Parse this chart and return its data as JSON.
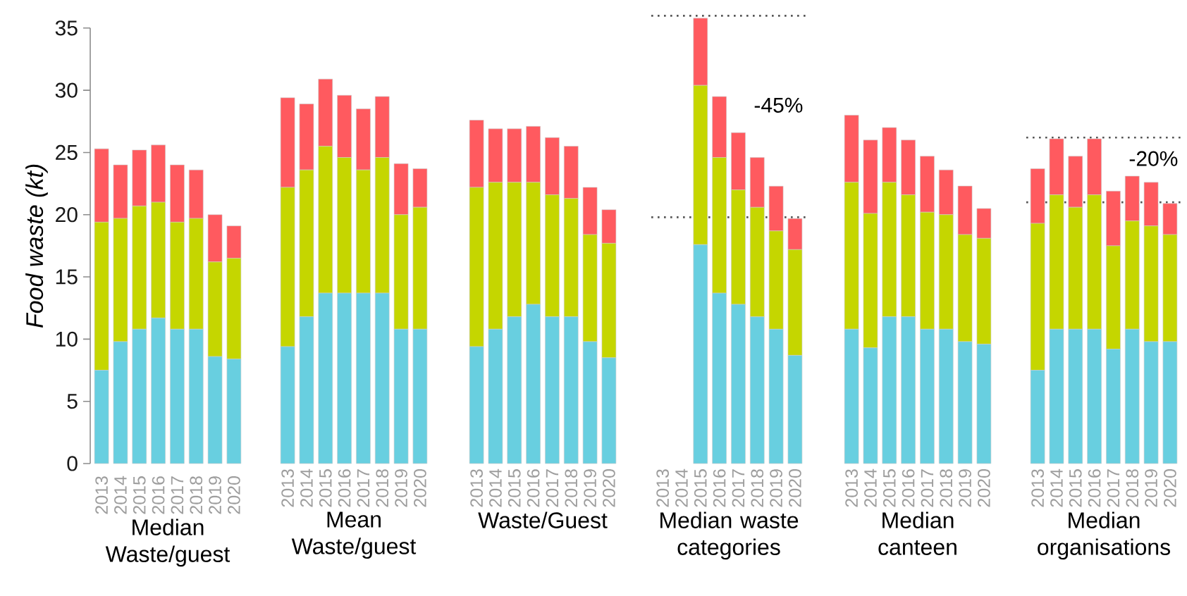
{
  "chart_data": [
    {
      "type": "bar",
      "stacked": true,
      "xlabel": "Median Waste/guest",
      "ylabel": "Food waste (kt)",
      "categories": [
        "2013",
        "2014",
        "2015",
        "2016",
        "2017",
        "2018",
        "2019",
        "2020"
      ],
      "ylim": [
        0,
        35
      ],
      "yticks": [
        0,
        5,
        10,
        15,
        20,
        25,
        30,
        35
      ],
      "series": [
        {
          "color": "#68cfe0",
          "values": [
            7.5,
            9.8,
            10.8,
            11.7,
            10.8,
            10.8,
            8.6,
            8.4
          ]
        },
        {
          "color": "#c5d600",
          "values": [
            11.9,
            9.9,
            9.9,
            9.3,
            8.6,
            8.9,
            7.6,
            8.1
          ]
        },
        {
          "color": "#ff5a5f",
          "values": [
            5.9,
            4.3,
            4.5,
            4.6,
            4.6,
            3.9,
            3.8,
            2.6
          ]
        }
      ]
    },
    {
      "type": "bar",
      "stacked": true,
      "xlabel": "Mean Waste/guest",
      "categories": [
        "2013",
        "2014",
        "2015",
        "2016",
        "2017",
        "2018",
        "2019",
        "2020"
      ],
      "ylim": [
        0,
        35
      ],
      "yticks": [
        0,
        5,
        10,
        15,
        20,
        25,
        30,
        35
      ],
      "tick_labels": "x",
      "series": [
        {
          "color": "#68cfe0",
          "values": [
            9.4,
            11.8,
            13.7,
            13.7,
            13.7,
            13.7,
            10.8,
            10.8
          ]
        },
        {
          "color": "#c5d600",
          "values": [
            12.8,
            11.8,
            11.8,
            10.9,
            9.9,
            10.9,
            9.2,
            9.8
          ]
        },
        {
          "color": "#ff5a5f",
          "values": [
            7.2,
            5.3,
            5.4,
            5.0,
            4.9,
            4.9,
            4.1,
            3.1
          ]
        }
      ]
    },
    {
      "type": "bar",
      "stacked": true,
      "xlabel": "Waste/Guest",
      "categories": [
        "2013",
        "2014",
        "2015",
        "2016",
        "2017",
        "2018",
        "2019",
        "2020"
      ],
      "ylim": [
        0,
        35
      ],
      "yticks": [
        0,
        5,
        10,
        15,
        20,
        25,
        30,
        35
      ],
      "tick_labels": "x",
      "series": [
        {
          "color": "#68cfe0",
          "values": [
            9.4,
            10.8,
            11.8,
            12.8,
            11.8,
            11.8,
            9.8,
            8.5
          ]
        },
        {
          "color": "#c5d600",
          "values": [
            12.8,
            11.8,
            10.8,
            9.8,
            9.8,
            9.5,
            8.6,
            9.2
          ]
        },
        {
          "color": "#ff5a5f",
          "values": [
            5.4,
            4.3,
            4.3,
            4.5,
            4.6,
            4.2,
            3.8,
            2.7
          ]
        }
      ]
    },
    {
      "type": "bar",
      "stacked": true,
      "xlabel": "Median waste categories",
      "categories": [
        "2013",
        "2014",
        "2015",
        "2016",
        "2017",
        "2018",
        "2019",
        "2020"
      ],
      "ylim": [
        0,
        36.2
      ],
      "yticks": [
        0,
        5,
        10,
        15,
        20,
        25,
        30,
        35
      ],
      "tick_labels": "x",
      "series": [
        {
          "color": "#68cfe0",
          "values": [
            null,
            null,
            17.6,
            13.7,
            12.8,
            11.8,
            10.8,
            8.7
          ]
        },
        {
          "color": "#c5d600",
          "values": [
            null,
            null,
            12.8,
            10.9,
            9.2,
            8.8,
            7.9,
            8.5
          ]
        },
        {
          "color": "#ff5a5f",
          "values": [
            null,
            null,
            5.4,
            4.9,
            4.6,
            4.0,
            3.6,
            2.5
          ]
        }
      ],
      "ref_lines": [
        {
          "axis": "y",
          "value": 36.0,
          "color": "#555555",
          "line_style": "dotted"
        },
        {
          "axis": "y",
          "value": 19.8,
          "color": "#555555",
          "line_style": "dotted"
        }
      ],
      "annotations": [
        "-45%"
      ]
    },
    {
      "type": "bar",
      "stacked": true,
      "xlabel": "Median canteen",
      "categories": [
        "2013",
        "2014",
        "2015",
        "2016",
        "2017",
        "2018",
        "2019",
        "2020"
      ],
      "ylim": [
        0,
        35
      ],
      "yticks": [
        0,
        5,
        10,
        15,
        20,
        25,
        30,
        35
      ],
      "tick_labels": "x",
      "series": [
        {
          "color": "#68cfe0",
          "values": [
            10.8,
            9.3,
            11.8,
            11.8,
            10.8,
            10.8,
            9.8,
            9.6
          ]
        },
        {
          "color": "#c5d600",
          "values": [
            11.8,
            10.8,
            10.8,
            9.8,
            9.4,
            9.2,
            8.6,
            8.5
          ]
        },
        {
          "color": "#ff5a5f",
          "values": [
            5.4,
            5.9,
            4.4,
            4.4,
            4.5,
            3.6,
            3.9,
            2.4
          ]
        }
      ]
    },
    {
      "type": "bar",
      "stacked": true,
      "xlabel": "Median organisations",
      "categories": [
        "2013",
        "2014",
        "2015",
        "2016",
        "2017",
        "2018",
        "2019",
        "2020"
      ],
      "ylim": [
        0,
        35
      ],
      "yticks": [
        0,
        5,
        10,
        15,
        20,
        25,
        30,
        35
      ],
      "tick_labels": "x",
      "series": [
        {
          "color": "#68cfe0",
          "values": [
            7.5,
            10.8,
            10.8,
            10.8,
            9.2,
            10.8,
            9.8,
            9.8
          ]
        },
        {
          "color": "#c5d600",
          "values": [
            11.8,
            10.8,
            9.8,
            10.8,
            8.3,
            8.7,
            9.3,
            8.6
          ]
        },
        {
          "color": "#ff5a5f",
          "values": [
            4.4,
            4.5,
            4.1,
            4.5,
            4.4,
            3.6,
            3.5,
            2.5
          ]
        }
      ],
      "ref_lines": [
        {
          "axis": "y",
          "value": 26.2,
          "color": "#555555",
          "line_style": "dotted"
        },
        {
          "axis": "y",
          "value": 21.0,
          "color": "#555555",
          "line_style": "dotted"
        }
      ],
      "annotations": [
        "-20%"
      ]
    }
  ]
}
